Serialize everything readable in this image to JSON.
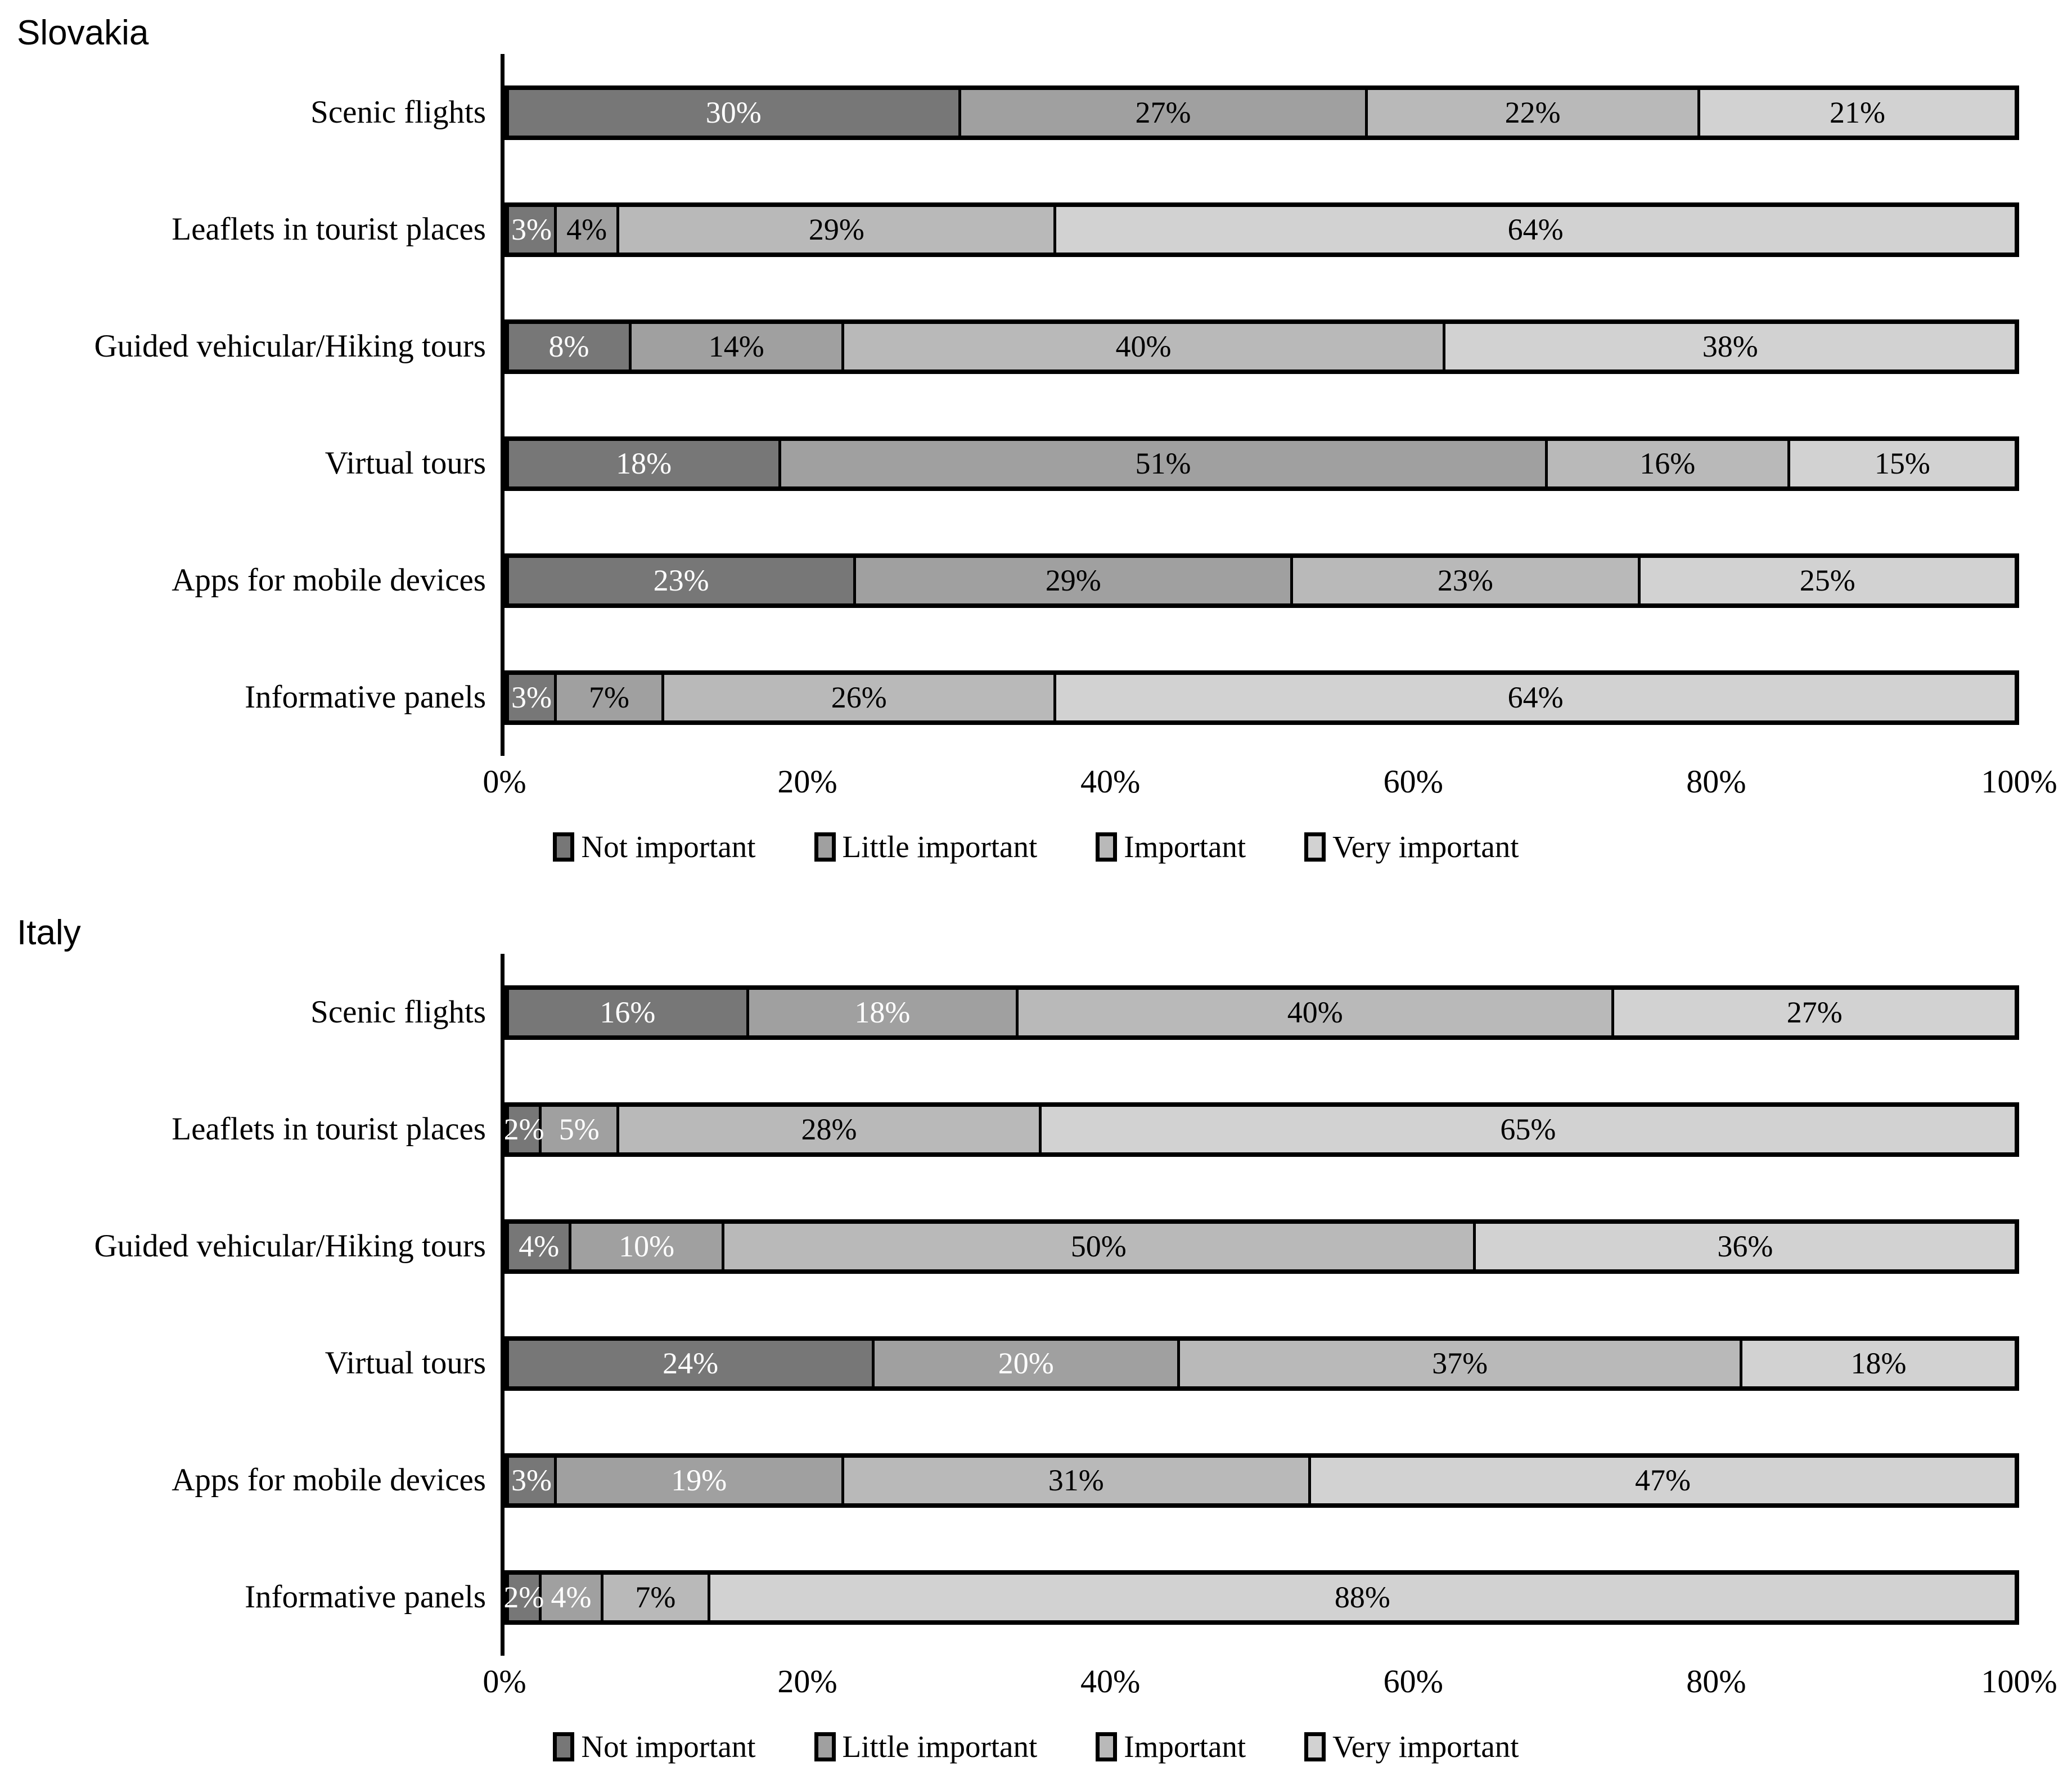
{
  "colors": {
    "series": [
      "#777777",
      "#a0a0a0",
      "#b9b9b9",
      "#d2d2d2"
    ],
    "bar_border": "#000000",
    "label_black": "#000000",
    "label_white": "#ffffff"
  },
  "chart_data": [
    {
      "type": "bar",
      "orientation": "horizontal",
      "stacked": true,
      "title": "Slovakia",
      "categories": [
        "Scenic flights",
        "Leaflets in tourist places",
        "Guided vehicular/Hiking tours",
        "Virtual tours",
        "Apps for mobile devices",
        "Informative panels"
      ],
      "series": [
        {
          "name": "Not important",
          "values": [
            30,
            3,
            8,
            18,
            23,
            3
          ]
        },
        {
          "name": "Little important",
          "values": [
            27,
            4,
            14,
            51,
            29,
            7
          ]
        },
        {
          "name": "Important",
          "values": [
            22,
            29,
            40,
            16,
            23,
            26
          ]
        },
        {
          "name": "Very important",
          "values": [
            21,
            64,
            38,
            15,
            25,
            64
          ]
        }
      ],
      "data_labels": [
        "30%",
        "27%",
        "22%",
        "21%",
        "3%",
        "4%",
        "29%",
        "64%",
        "8%",
        "14%",
        "40%",
        "38%",
        "18%",
        "51%",
        "16%",
        "15%",
        "23%",
        "29%",
        "23%",
        "25%",
        "3%",
        "7%",
        "26%",
        "64%"
      ],
      "xlim": [
        0,
        100
      ],
      "x_ticks": [
        "0%",
        "20%",
        "40%",
        "60%",
        "80%",
        "100%"
      ],
      "grid": false,
      "legend": [
        "Not important",
        "Little important",
        "Important",
        "Very important"
      ],
      "legend_position": "bottom",
      "white_label_series": [
        0
      ]
    },
    {
      "type": "bar",
      "orientation": "horizontal",
      "stacked": true,
      "title": "Italy",
      "categories": [
        "Scenic flights",
        "Leaflets in tourist places",
        "Guided vehicular/Hiking tours",
        "Virtual tours",
        "Apps for mobile devices",
        "Informative panels"
      ],
      "series": [
        {
          "name": "Not important",
          "values": [
            16,
            2,
            4,
            24,
            3,
            2
          ]
        },
        {
          "name": "Little important",
          "values": [
            18,
            5,
            10,
            20,
            19,
            4
          ]
        },
        {
          "name": "Important",
          "values": [
            40,
            28,
            50,
            37,
            31,
            7
          ]
        },
        {
          "name": "Very important",
          "values": [
            27,
            65,
            36,
            18,
            47,
            88
          ]
        }
      ],
      "data_labels": [
        "16%",
        "18%",
        "40%",
        "27%",
        "2%",
        "5%",
        "28%",
        "65%",
        "4%",
        "10%",
        "50%",
        "36%",
        "24%",
        "20%",
        "37%",
        "18%",
        "3%",
        "19%",
        "31%",
        "47%",
        "2%",
        "4%",
        "7%",
        "88%"
      ],
      "xlim": [
        0,
        100
      ],
      "x_ticks": [
        "0%",
        "20%",
        "40%",
        "60%",
        "80%",
        "100%"
      ],
      "grid": false,
      "legend": [
        "Not important",
        "Little important",
        "Important",
        "Very important"
      ],
      "legend_position": "bottom",
      "white_label_series": [
        0,
        1
      ]
    }
  ]
}
